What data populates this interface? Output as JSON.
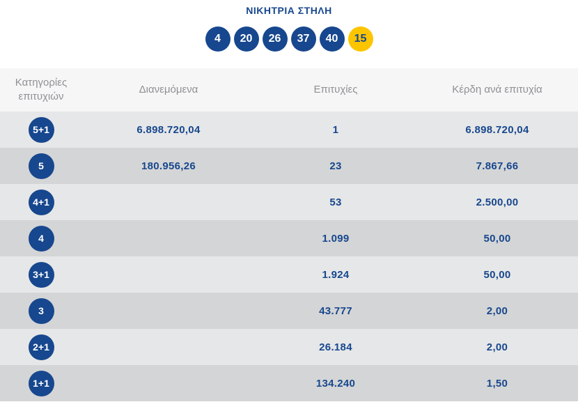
{
  "colors": {
    "primary_blue": "#17478e",
    "joker_yellow": "#fdc500",
    "header_bg": "#f6f6f7",
    "row_light": "#e6e7e8",
    "row_dark": "#d4d5d6",
    "header_text": "#8e9093",
    "page_bg": "#ffffff"
  },
  "winning_column": {
    "title": "ΝΙΚΗΤΡΙΑ ΣΤΗΛΗ",
    "numbers": [
      {
        "value": "4",
        "type": "main"
      },
      {
        "value": "20",
        "type": "main"
      },
      {
        "value": "26",
        "type": "main"
      },
      {
        "value": "37",
        "type": "main"
      },
      {
        "value": "40",
        "type": "main"
      },
      {
        "value": "15",
        "type": "joker"
      }
    ]
  },
  "table": {
    "headers": [
      "Κατηγορίες επιτυχιών",
      "Διανεμόμενα",
      "Επιτυχίες",
      "Κέρδη ανά επιτυχία"
    ],
    "rows": [
      {
        "category": "5+1",
        "distributed": "6.898.720,04",
        "winners": "1",
        "prize_per_winner": "6.898.720,04"
      },
      {
        "category": "5",
        "distributed": "180.956,26",
        "winners": "23",
        "prize_per_winner": "7.867,66"
      },
      {
        "category": "4+1",
        "distributed": "",
        "winners": "53",
        "prize_per_winner": "2.500,00"
      },
      {
        "category": "4",
        "distributed": "",
        "winners": "1.099",
        "prize_per_winner": "50,00"
      },
      {
        "category": "3+1",
        "distributed": "",
        "winners": "1.924",
        "prize_per_winner": "50,00"
      },
      {
        "category": "3",
        "distributed": "",
        "winners": "43.777",
        "prize_per_winner": "2,00"
      },
      {
        "category": "2+1",
        "distributed": "",
        "winners": "26.184",
        "prize_per_winner": "2,00"
      },
      {
        "category": "1+1",
        "distributed": "",
        "winners": "134.240",
        "prize_per_winner": "1,50"
      }
    ]
  }
}
